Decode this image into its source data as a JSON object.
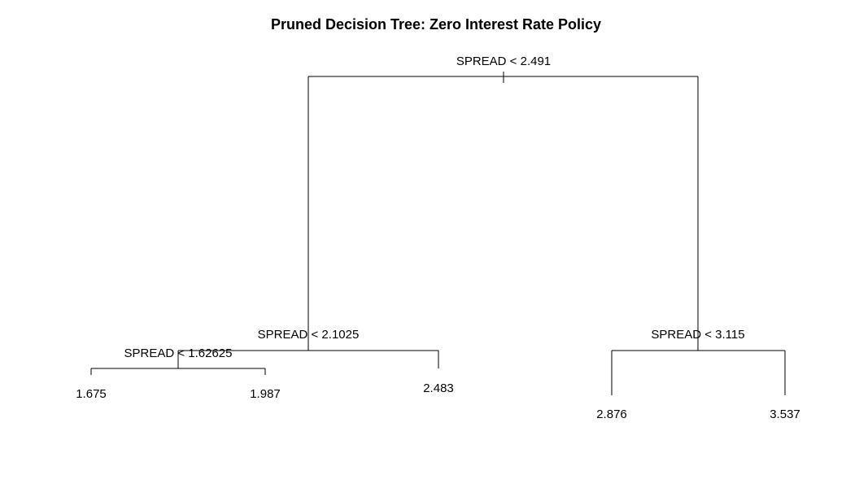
{
  "tree": {
    "title": "Pruned Decision Tree: Zero Interest Rate Policy",
    "variable": "SPREAD",
    "root": {
      "split": "SPREAD < 2.491",
      "left": {
        "split": "SPREAD < 2.1025",
        "left": {
          "split": "SPREAD < 1.62625",
          "left": {
            "leaf": "1.675"
          },
          "right": {
            "leaf": "1.987"
          }
        },
        "right": {
          "leaf": "2.483"
        }
      },
      "right": {
        "split": "SPREAD < 3.115",
        "left": {
          "leaf": "2.876"
        },
        "right": {
          "leaf": "3.537"
        }
      }
    }
  }
}
